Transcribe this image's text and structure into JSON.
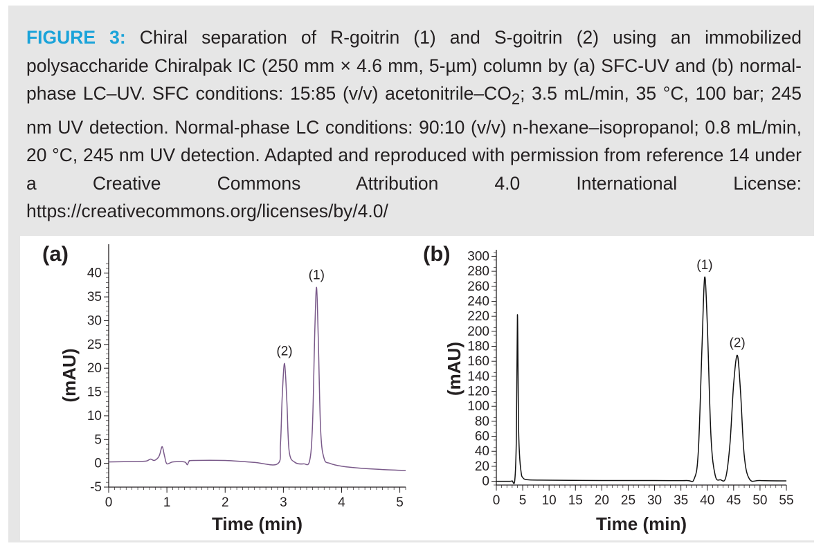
{
  "caption": {
    "label": "FIGURE 3:",
    "text_part1": " Chiral separation of R-goitrin (1) and S-goitrin (2) using an immobilized polysaccharide Chiralpak IC (250 mm × 4.6 mm, 5-µm) column by (a) SFC-UV and (b) normal-phase LC–UV. SFC conditions: 15:85 (v/v) acetonitrile–CO",
    "subscript": "2",
    "text_part2": "; 3.5 mL/min, 35 °C, 100 bar; 245 nm UV detection. Normal-phase LC conditions: 90:10 (v/v) n-hexane–isopropanol; 0.8 mL/min, 20 °C, 245 nm UV detection. Adapted and reproduced with permission from reference 14 under a Creative Commons Attribution 4.0 International License: https://creativecommons.org/licenses/by/4.0/"
  },
  "colors": {
    "caption_label": "#1aa3d9",
    "panel_background": "#e6e6e6",
    "trace_a": "#7a5a8a",
    "trace_b": "#111111"
  },
  "chart_data": [
    {
      "panel": "(a)",
      "type": "line",
      "xlabel": "Time (min)",
      "ylabel": "(mAU)",
      "xlim": [
        0,
        5.1
      ],
      "ylim": [
        -5,
        42
      ],
      "xticks": [
        0,
        1,
        2,
        3,
        4,
        5
      ],
      "yticks": [
        -5,
        0,
        5,
        10,
        15,
        20,
        25,
        30,
        35,
        40
      ],
      "grid": false,
      "annotations": [
        {
          "text": "(2)",
          "x": 3.02,
          "y": 21
        },
        {
          "text": "(1)",
          "x": 3.57,
          "y": 37
        }
      ],
      "series": [
        {
          "name": "SFC-UV",
          "x": [
            0,
            0.5,
            0.65,
            0.72,
            0.78,
            0.85,
            0.88,
            0.92,
            0.96,
            1.0,
            1.1,
            1.3,
            1.35,
            1.38,
            1.45,
            2.0,
            2.5,
            2.9,
            2.95,
            2.98,
            3.02,
            3.06,
            3.1,
            3.2,
            3.35,
            3.45,
            3.5,
            3.54,
            3.57,
            3.6,
            3.64,
            3.7,
            3.8,
            4.0,
            4.3,
            4.7,
            5.1
          ],
          "y": [
            0.3,
            0.4,
            0.5,
            0.9,
            0.6,
            1.2,
            2.0,
            3.5,
            1.5,
            -0.1,
            0.3,
            0.3,
            -0.3,
            0.4,
            0.6,
            0.6,
            0.2,
            -0.1,
            4.0,
            14.0,
            21.0,
            13.0,
            2.5,
            0.2,
            -0.1,
            0.5,
            8.0,
            28.0,
            37.0,
            26.0,
            7.0,
            1.0,
            0.0,
            -0.6,
            -1.0,
            -1.3,
            -1.5
          ]
        }
      ]
    },
    {
      "panel": "(b)",
      "type": "line",
      "xlabel": "Time (min)",
      "ylabel": "(mAU)",
      "xlim": [
        0,
        55
      ],
      "ylim": [
        -5,
        305
      ],
      "xticks": [
        0,
        5,
        10,
        15,
        20,
        25,
        30,
        35,
        40,
        45,
        50,
        55
      ],
      "yticks": [
        0,
        20,
        40,
        60,
        80,
        100,
        120,
        140,
        160,
        180,
        200,
        220,
        240,
        260,
        280,
        300
      ],
      "grid": false,
      "annotations": [
        {
          "text": "(1)",
          "x": 39.5,
          "y": 272
        },
        {
          "text": "(2)",
          "x": 45.7,
          "y": 168
        }
      ],
      "series": [
        {
          "name": "Normal-phase LC-UV",
          "x": [
            0,
            2.5,
            3.0,
            3.5,
            3.8,
            4.0,
            4.2,
            4.4,
            4.7,
            5.0,
            6.0,
            10,
            20,
            30,
            36,
            37.5,
            38.3,
            39.0,
            39.5,
            40.0,
            40.7,
            41.5,
            42.5,
            43.5,
            44.3,
            45.0,
            45.7,
            46.3,
            47.0,
            48.0,
            50,
            55
          ],
          "y": [
            0,
            0,
            0.5,
            1.5,
            60,
            222,
            80,
            35,
            12,
            5,
            2,
            1.5,
            1,
            1,
            1,
            3,
            40,
            180,
            272,
            210,
            60,
            8,
            2,
            5,
            50,
            130,
            168,
            120,
            35,
            3,
            1,
            0.5
          ]
        }
      ]
    }
  ]
}
